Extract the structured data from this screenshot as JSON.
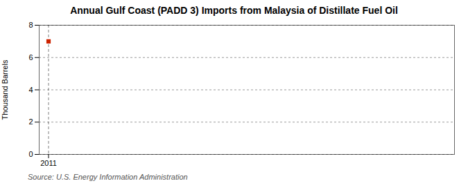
{
  "chart_data": {
    "type": "scatter",
    "title": "Annual Gulf Coast (PADD 3) Imports from Malaysia of Distillate Fuel Oil",
    "ylabel": "Thousand Barrels",
    "source": "Source: U.S. Energy Information Administration",
    "x": [
      2011
    ],
    "values": [
      7
    ],
    "color": "#cc2200",
    "marker": "square",
    "xlim": [
      2010.7,
      2024
    ],
    "xticks": [
      2011
    ],
    "ylim": [
      0,
      8
    ],
    "yticks": [
      0,
      2,
      4,
      6,
      8
    ],
    "grid": true,
    "vlines": [
      2011
    ]
  }
}
